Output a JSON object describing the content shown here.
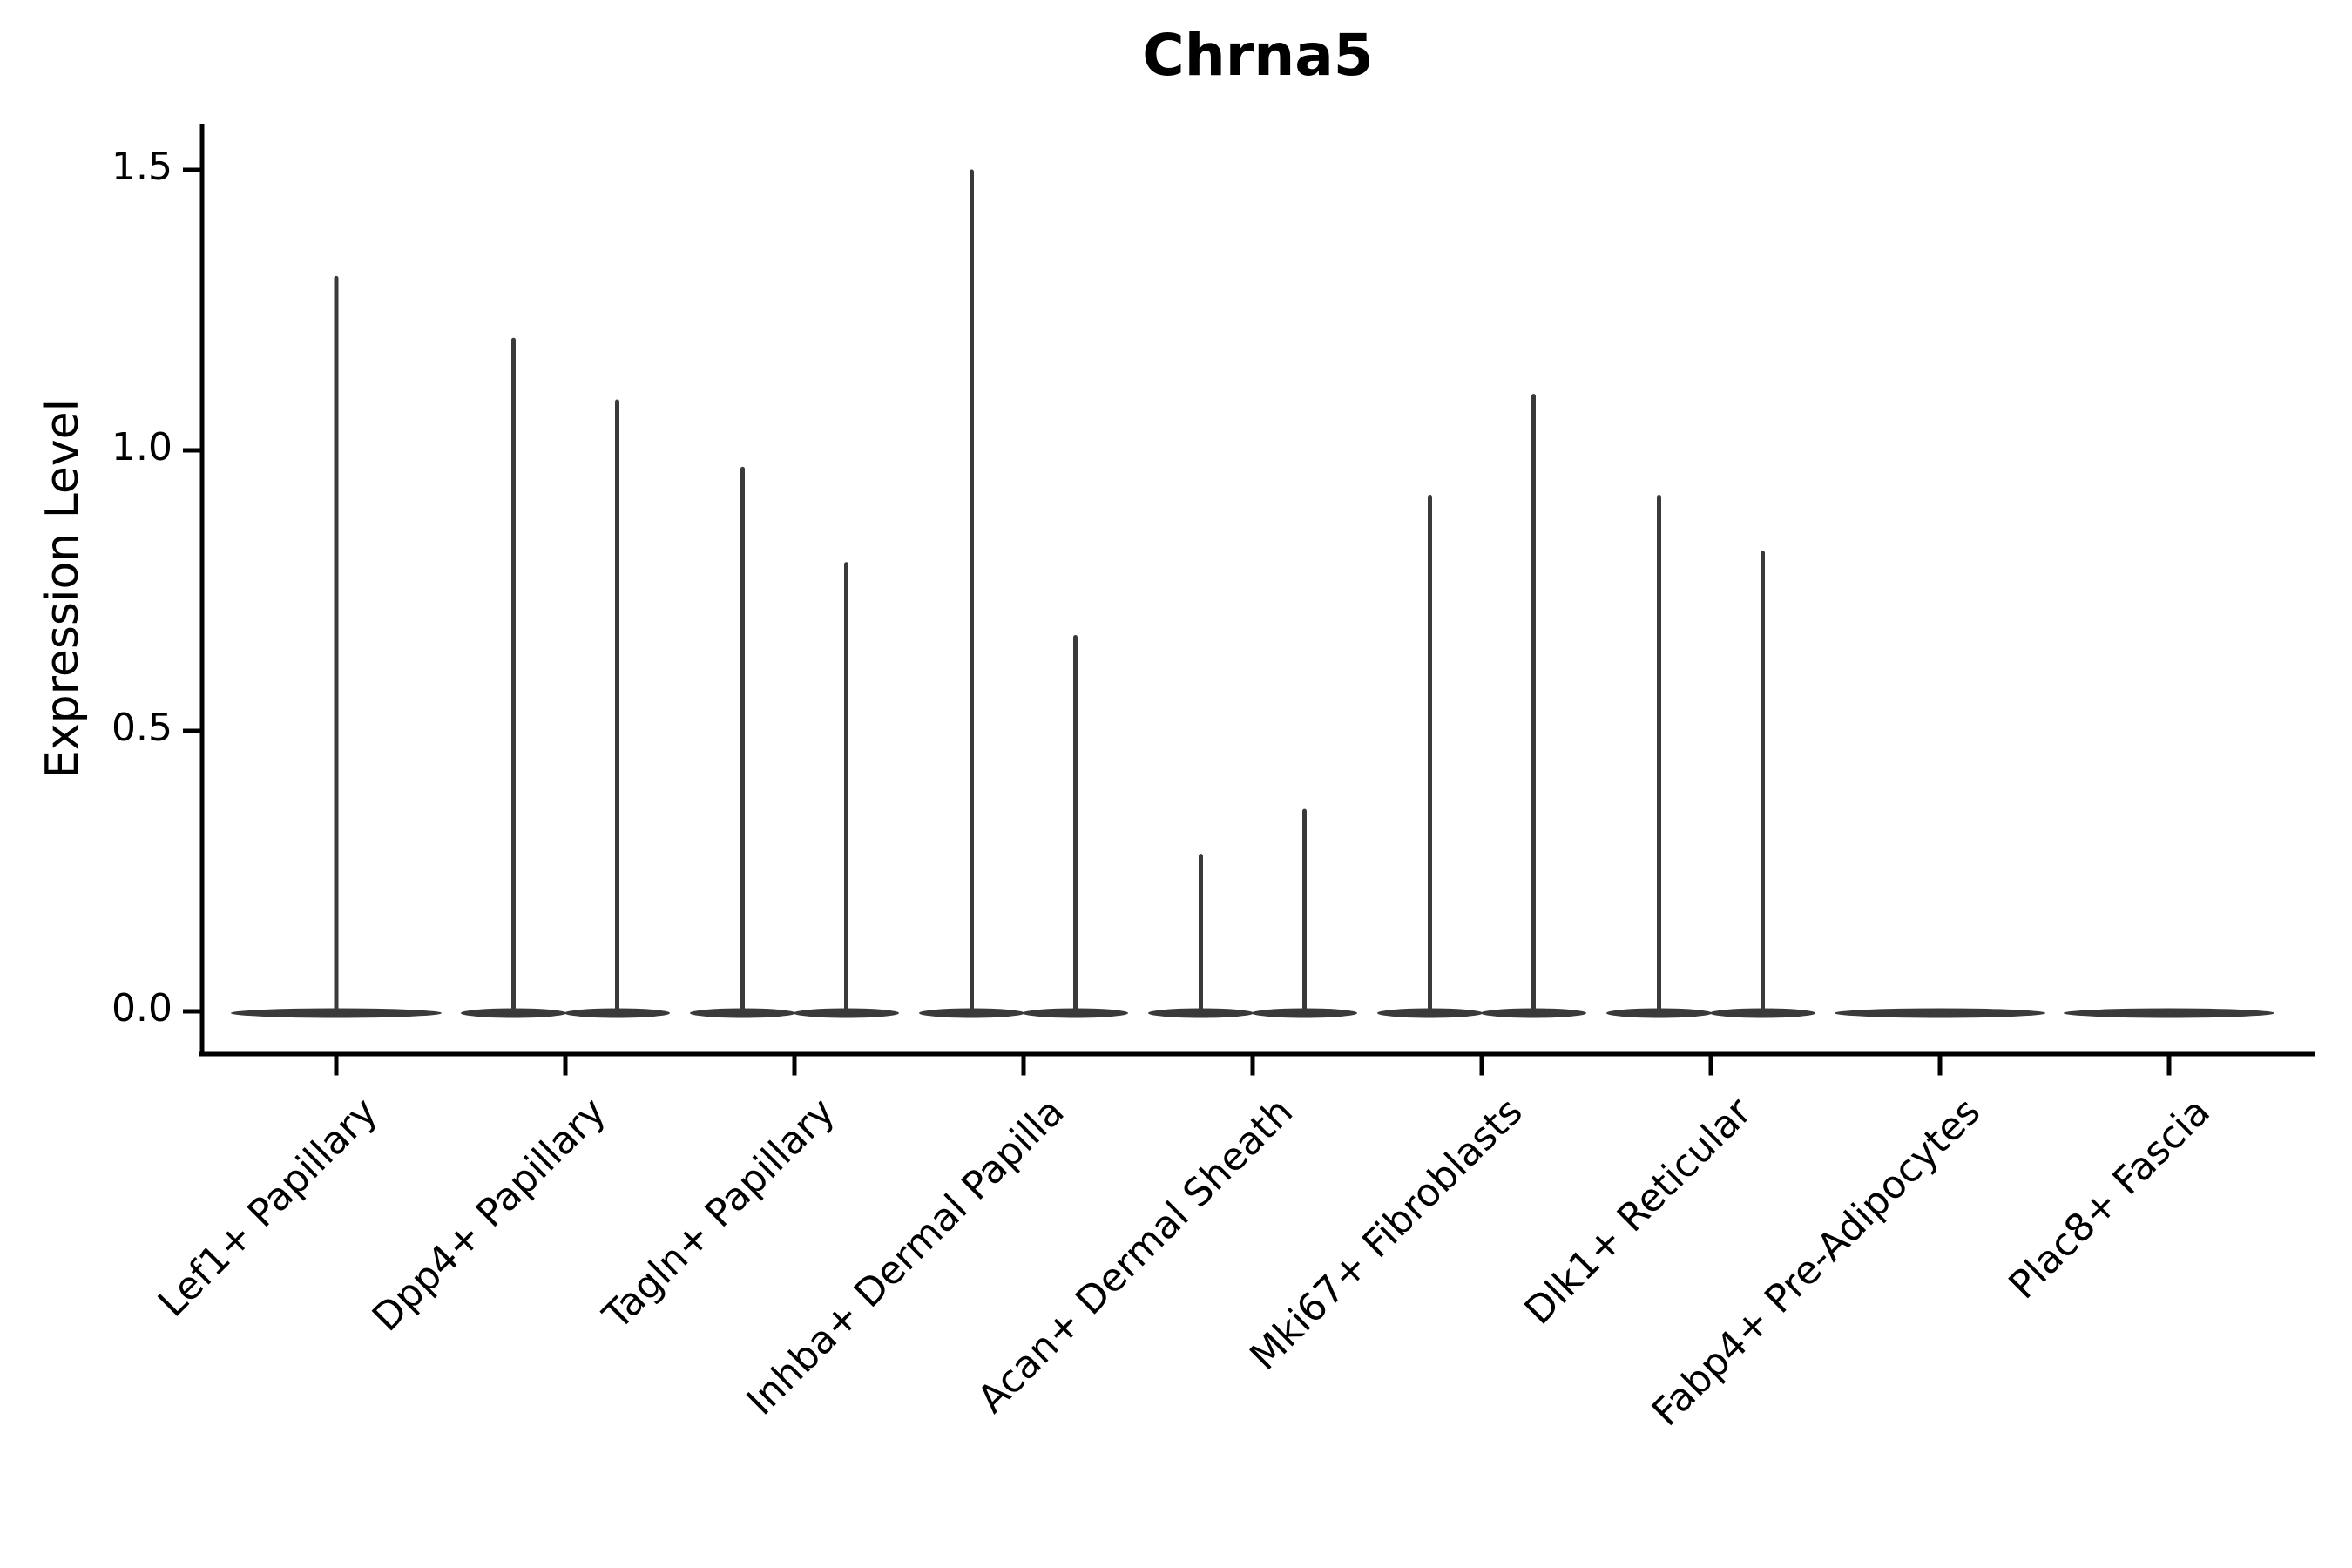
{
  "chart_data": {
    "type": "violin",
    "title": "Chrna5",
    "ylabel": "Expression Level",
    "xlabel": "",
    "ylim": [
      -0.08,
      1.58
    ],
    "y_ticks": [
      0.0,
      0.5,
      1.0,
      1.5
    ],
    "y_tick_labels": [
      "0.0",
      "0.5",
      "1.0",
      "1.5"
    ],
    "categories": [
      "Lef1+ Papillary",
      "Dpp4+ Papillary",
      "Tagln+ Papillary",
      "Inhba+ Dermal Papilla",
      "Acan+ Dermal Sheath",
      "Mki67+ Fibroblasts",
      "Dlk1+ Reticular",
      "Fabp4+ Pre-Adipocytes",
      "Plac8+ Fascia"
    ],
    "violins": [
      {
        "category": "Lef1+ Papillary",
        "group_max_expression": [
          1.31
        ]
      },
      {
        "category": "Dpp4+ Papillary",
        "group_max_expression": [
          1.2,
          1.09
        ]
      },
      {
        "category": "Tagln+ Papillary",
        "group_max_expression": [
          0.97,
          0.8
        ]
      },
      {
        "category": "Inhba+ Dermal Papilla",
        "group_max_expression": [
          1.5,
          0.67
        ]
      },
      {
        "category": "Acan+ Dermal Sheath",
        "group_max_expression": [
          0.28,
          0.36
        ]
      },
      {
        "category": "Mki67+ Fibroblasts",
        "group_max_expression": [
          0.92,
          1.1
        ]
      },
      {
        "category": "Dlk1+ Reticular",
        "group_max_expression": [
          0.92,
          0.82
        ]
      },
      {
        "category": "Fabp4+ Pre-Adipocytes",
        "group_max_expression": [
          0.0
        ]
      },
      {
        "category": "Plac8+ Fascia",
        "group_max_expression": [
          0.0
        ]
      }
    ],
    "legend": "none",
    "grid": false,
    "colors": {
      "violin": "#3a3a3a",
      "axis": "#000000",
      "text": "#000000",
      "background": "#ffffff"
    }
  }
}
